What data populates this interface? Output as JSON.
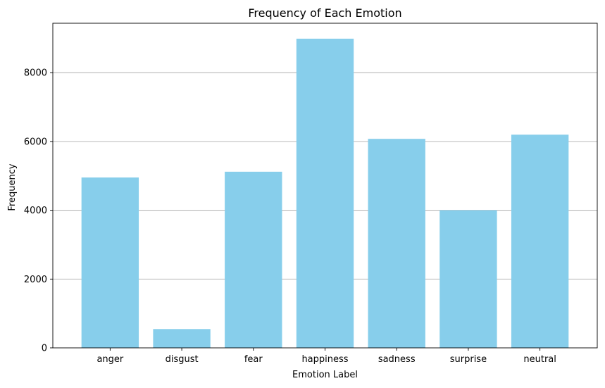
{
  "chart_data": {
    "type": "bar",
    "title": "Frequency of Each Emotion",
    "xlabel": "Emotion Label",
    "ylabel": "Frequency",
    "categories": [
      "anger",
      "disgust",
      "fear",
      "happiness",
      "sadness",
      "surprise",
      "neutral"
    ],
    "values": [
      4953,
      547,
      5121,
      8989,
      6077,
      4002,
      6198
    ],
    "ylim": [
      0,
      9438
    ],
    "yticks": [
      0,
      2000,
      4000,
      6000,
      8000
    ],
    "ytick_labels": [
      "0",
      "2000",
      "4000",
      "6000",
      "8000"
    ],
    "grid": "y-axis horizontal lines",
    "legend": "none",
    "bar_color": "#87ceeb",
    "grid_color": "#b0b0b0"
  }
}
